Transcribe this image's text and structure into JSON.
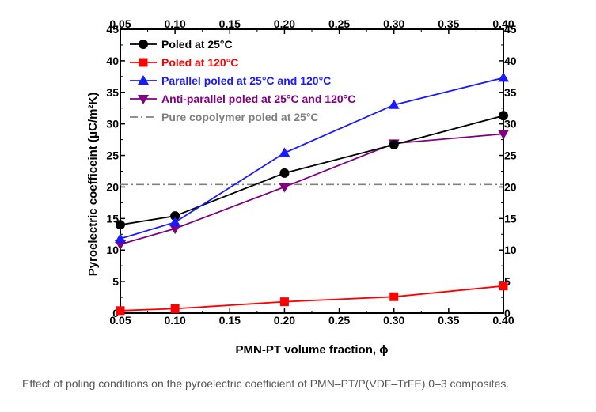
{
  "chart_data": {
    "type": "line",
    "xlabel": "PMN-PT volume fraction, ϕ",
    "ylabel": "Pyroelectric coefficeint (μC/m²K)",
    "xlim": [
      0.05,
      0.4
    ],
    "ylim": [
      0,
      45
    ],
    "x_ticks": [
      "0.05",
      "0.10",
      "0.15",
      "0.20",
      "0.25",
      "0.30",
      "0.35",
      "0.40"
    ],
    "y_ticks": [
      "0",
      "5",
      "10",
      "15",
      "20",
      "25",
      "30",
      "35",
      "40",
      "45"
    ],
    "mirrored_axes": true,
    "grid": false,
    "legend_position": "top-left",
    "x": [
      0.05,
      0.1,
      0.2,
      0.3,
      0.4
    ],
    "series": [
      {
        "name": "Poled at 25°C",
        "values": [
          14.0,
          15.4,
          22.2,
          26.7,
          31.3
        ],
        "color": "#000000",
        "marker": "circle"
      },
      {
        "name": "Poled at 120°C",
        "values": [
          0.4,
          0.7,
          1.8,
          2.6,
          4.3
        ],
        "color": "#ff0000",
        "marker": "square"
      },
      {
        "name": "Parallel poled at 25°C and 120°C",
        "values": [
          11.8,
          14.4,
          25.4,
          33.0,
          37.3
        ],
        "color": "#1a1aff",
        "marker": "triangle-up"
      },
      {
        "name": "Anti-parallel poled at 25°C and 120°C",
        "values": [
          10.9,
          13.4,
          20.0,
          26.9,
          28.4
        ],
        "color": "#800080",
        "marker": "triangle-down"
      },
      {
        "name": "Pure copolymer poled at 25°C",
        "values": [
          20.4,
          20.4
        ],
        "x": [
          0.05,
          0.4
        ],
        "color": "#808080",
        "marker": "none",
        "dash": "dash-dot"
      }
    ]
  },
  "caption": "Effect of poling conditions on the pyroelectric coefficient of PMN–PT/P(VDF–TrFE) 0–3 composites."
}
